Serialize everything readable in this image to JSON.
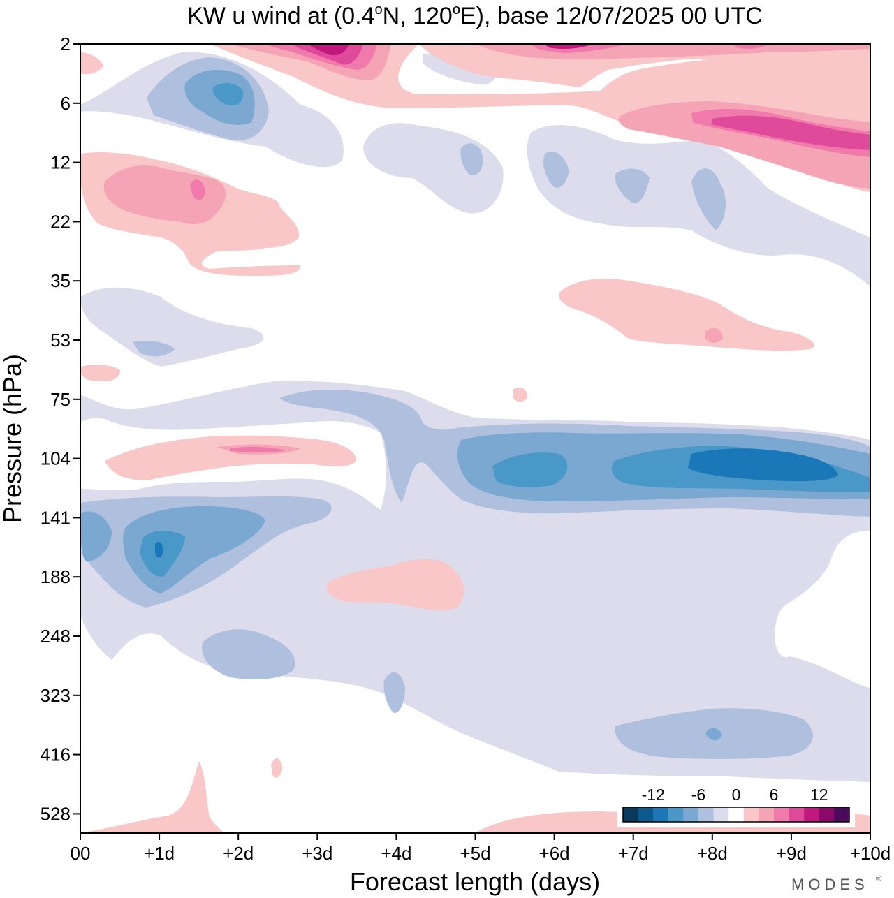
{
  "chart_data": {
    "type": "heatmap",
    "title_parts": {
      "prefix": "KW u wind at (0.4",
      "sup1": "o",
      "mid": "N, 120",
      "sup2": "o",
      "suffix": "E),  base 12/07/2025  00 UTC"
    },
    "xlabel": "Forecast length (days)",
    "ylabel": "Pressure (hPa)",
    "x_ticks": [
      "00",
      "+1d",
      "+2d",
      "+3d",
      "+4d",
      "+5d",
      "+6d",
      "+7d",
      "+8d",
      "+9d",
      "+10d"
    ],
    "xlim": [
      0,
      10
    ],
    "y_ticks": [
      "2",
      "6",
      "12",
      "22",
      "35",
      "53",
      "75",
      "104",
      "141",
      "188",
      "248",
      "323",
      "416",
      "528"
    ],
    "y_scale": "pressure levels (top = 2 hPa, bottom below 528 hPa)",
    "colorbar": {
      "labels": [
        "-12",
        "-6",
        "0",
        "6",
        "12"
      ],
      "bounds": [
        -16,
        -14,
        -12,
        -10,
        -8,
        -6,
        -4,
        -2,
        2,
        4,
        6,
        8,
        10,
        12,
        14,
        16
      ],
      "colors": [
        "#0b3a5c",
        "#0b5a8e",
        "#1a78b8",
        "#4a98c8",
        "#7ba8d0",
        "#aec0de",
        "#dcdcec",
        "#ffffff",
        "#f9c7c7",
        "#f5a4b6",
        "#f07aab",
        "#e04a9a",
        "#c0187c",
        "#8a0a6a",
        "#4c0b5a"
      ]
    },
    "grid": false,
    "legend": "bottom-right inside plot"
  },
  "logo": {
    "text": "MODES",
    "mark": "®"
  }
}
